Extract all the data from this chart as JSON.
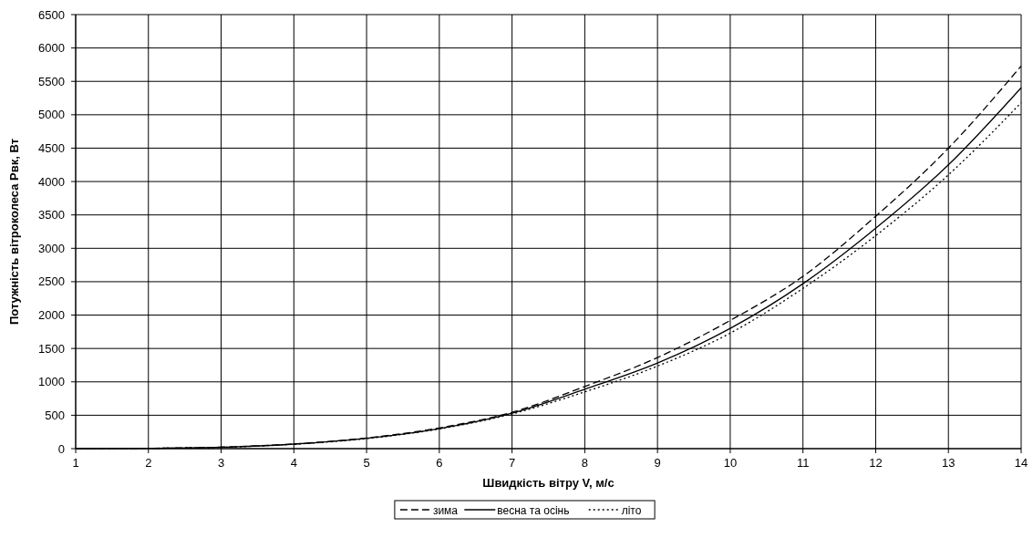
{
  "chart_data": {
    "type": "line",
    "xlabel": "Швидкість вітру V, м/с",
    "ylabel": "Потужність вітроколеса Pвк, Вт",
    "x": [
      1,
      2,
      3,
      4,
      5,
      6,
      7,
      8,
      9,
      10,
      11,
      12,
      13,
      14
    ],
    "xlim": [
      1,
      14
    ],
    "xticks": [
      1,
      2,
      3,
      4,
      5,
      6,
      7,
      8,
      9,
      10,
      11,
      12,
      13,
      14
    ],
    "ylim": [
      0,
      6500
    ],
    "yticks": [
      0,
      500,
      1000,
      1500,
      2000,
      2500,
      3000,
      3500,
      4000,
      4500,
      5000,
      5500,
      6000,
      6500
    ],
    "grid": true,
    "legend": "bottom",
    "marker": "none",
    "series": [
      {
        "name": "зима",
        "color": "#000000",
        "line_style": "dashed",
        "values": [
          0,
          5,
          22,
          70,
          160,
          310,
          545,
          930,
          1364,
          1920,
          2580,
          3480,
          4500,
          5730
        ]
      },
      {
        "name": "весна та осінь",
        "color": "#000000",
        "line_style": "solid",
        "values": [
          0,
          5,
          21,
          68,
          155,
          300,
          530,
          890,
          1282,
          1800,
          2470,
          3300,
          4250,
          5405
        ]
      },
      {
        "name": "літо",
        "color": "#000000",
        "line_style": "dotted",
        "values": [
          0,
          5,
          20,
          66,
          150,
          295,
          520,
          850,
          1236,
          1730,
          2400,
          3190,
          4100,
          5180
        ]
      }
    ]
  }
}
